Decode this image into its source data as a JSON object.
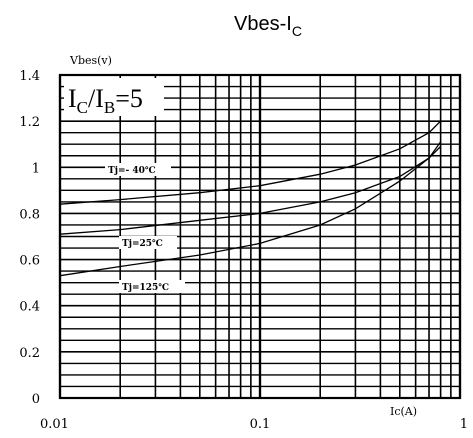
{
  "chart_data": {
    "type": "line",
    "title": {
      "main": "Vbes-I",
      "sub": "C"
    },
    "ylabel": "Vbes(v)",
    "xlabel": "Ic(A)",
    "x_scale": "log",
    "xlim": [
      0.01,
      1
    ],
    "ylim": [
      0,
      1.4
    ],
    "x_tick_labels": [
      "0.01",
      "0.1",
      "1"
    ],
    "y_tick_labels": [
      "0",
      "0.2",
      "0.4",
      "0.6",
      "0.8",
      "1",
      "1.2",
      "1.4"
    ],
    "grid": true,
    "condition": {
      "a": "I",
      "a_sub": "C",
      "sep": "/I",
      "b_sub": "B",
      "rest": "=5"
    },
    "series": [
      {
        "name": "Tj=- 40℃",
        "x": [
          0.01,
          0.02,
          0.05,
          0.1,
          0.2,
          0.3,
          0.5,
          0.7,
          0.8
        ],
        "y": [
          0.84,
          0.86,
          0.89,
          0.92,
          0.97,
          1.01,
          1.08,
          1.15,
          1.2
        ]
      },
      {
        "name": "Tj=25℃",
        "x": [
          0.01,
          0.02,
          0.05,
          0.1,
          0.2,
          0.3,
          0.5,
          0.7,
          0.8
        ],
        "y": [
          0.71,
          0.73,
          0.77,
          0.8,
          0.85,
          0.89,
          0.96,
          1.04,
          1.09
        ]
      },
      {
        "name": "Tj=125℃",
        "x": [
          0.01,
          0.02,
          0.05,
          0.1,
          0.2,
          0.3,
          0.5,
          0.7,
          0.8
        ],
        "y": [
          0.53,
          0.57,
          0.62,
          0.67,
          0.75,
          0.82,
          0.94,
          1.04,
          1.11
        ]
      }
    ]
  }
}
